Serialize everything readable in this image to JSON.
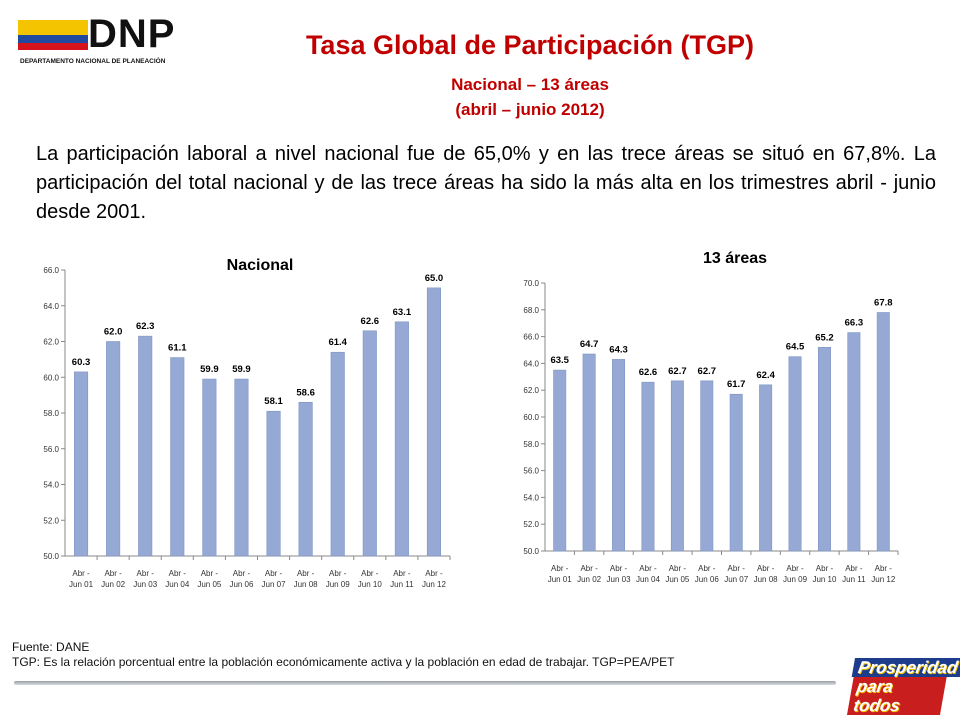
{
  "logo": {
    "name": "DNP",
    "subtitle": "DEPARTAMENTO NACIONAL DE PLANEACIÓN"
  },
  "header": {
    "title": "Tasa Global de Participación (TGP)",
    "subtitle1": "Nacional – 13 áreas",
    "subtitle2": "(abril – junio 2012)"
  },
  "paragraph": "La participación laboral a nivel nacional fue de 65,0% y en las trece áreas se situó en 67,8%. La participación del total nacional y de las trece áreas ha sido la más alta en los trimestres abril - junio desde 2001.",
  "footer": {
    "source": "Fuente: DANE",
    "note": "TGP: Es la relación porcentual entre la población económicamente activa y la población  en edad de trabajar. TGP=PEA/PET"
  },
  "brand": {
    "line1": "Prosperidad",
    "line2": "para todos"
  },
  "colors": {
    "bar": "#95a9d4",
    "bar_edge": "#7f95c4",
    "title_red": "#c00000"
  },
  "chart_data": [
    {
      "type": "bar",
      "title": "Nacional",
      "categories": [
        [
          "Abr -",
          "Jun 01"
        ],
        [
          "Abr -",
          "Jun 02"
        ],
        [
          "Abr -",
          "Jun 03"
        ],
        [
          "Abr -",
          "Jun 04"
        ],
        [
          "Abr -",
          "Jun 05"
        ],
        [
          "Abr -",
          "Jun 06"
        ],
        [
          "Abr -",
          "Jun 07"
        ],
        [
          "Abr -",
          "Jun 08"
        ],
        [
          "Abr -",
          "Jun 09"
        ],
        [
          "Abr -",
          "Jun 10"
        ],
        [
          "Abr -",
          "Jun 11"
        ],
        [
          "Abr -",
          "Jun 12"
        ]
      ],
      "values": [
        60.3,
        62.0,
        62.3,
        61.1,
        59.9,
        59.9,
        58.1,
        58.6,
        61.4,
        62.6,
        63.1,
        65.0
      ],
      "ylim": [
        50.0,
        66.0
      ],
      "yticks": [
        "50.0",
        "52.0",
        "54.0",
        "56.0",
        "58.0",
        "60.0",
        "62.0",
        "64.0",
        "66.0"
      ],
      "grid": false
    },
    {
      "type": "bar",
      "title": "13 áreas",
      "categories": [
        [
          "Abr -",
          "Jun 01"
        ],
        [
          "Abr -",
          "Jun 02"
        ],
        [
          "Abr -",
          "Jun 03"
        ],
        [
          "Abr -",
          "Jun 04"
        ],
        [
          "Abr -",
          "Jun 05"
        ],
        [
          "Abr -",
          "Jun 06"
        ],
        [
          "Abr -",
          "Jun 07"
        ],
        [
          "Abr -",
          "Jun 08"
        ],
        [
          "Abr -",
          "Jun 09"
        ],
        [
          "Abr -",
          "Jun 10"
        ],
        [
          "Abr -",
          "Jun 11"
        ],
        [
          "Abr -",
          "Jun 12"
        ]
      ],
      "values": [
        63.5,
        64.7,
        64.3,
        62.6,
        62.7,
        62.7,
        61.7,
        62.4,
        64.5,
        65.2,
        66.3,
        67.8
      ],
      "ylim": [
        50.0,
        70.0
      ],
      "yticks": [
        "50.0",
        "52.0",
        "54.0",
        "56.0",
        "58.0",
        "60.0",
        "62.0",
        "64.0",
        "66.0",
        "68.0",
        "70.0"
      ],
      "grid": false
    }
  ]
}
